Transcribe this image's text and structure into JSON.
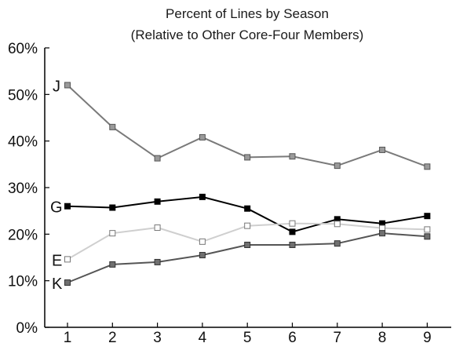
{
  "chart_data": {
    "type": "line",
    "title": "Percent of Lines by Season",
    "subtitle": "(Relative to Other Core-Four Members)",
    "xlabel": "",
    "ylabel": "",
    "x": [
      1,
      2,
      3,
      4,
      5,
      6,
      7,
      8,
      9
    ],
    "x_tick_labels": [
      "1",
      "2",
      "3",
      "4",
      "5",
      "6",
      "7",
      "8",
      "9"
    ],
    "ylim": [
      0,
      60
    ],
    "y_ticks": [
      0,
      10,
      20,
      30,
      40,
      50,
      60
    ],
    "y_tick_labels": [
      "0%",
      "10%",
      "20%",
      "30%",
      "40%",
      "50%",
      "60%"
    ],
    "grid": false,
    "legend": "none",
    "series": [
      {
        "name": "J",
        "values": [
          52.0,
          43.0,
          36.3,
          40.8,
          36.5,
          36.7,
          34.7,
          38.1,
          34.5
        ],
        "line_color": "#7a7a7a",
        "marker_fill": "#9a9a9a",
        "marker_stroke": "#555555"
      },
      {
        "name": "G",
        "values": [
          26.0,
          25.7,
          27.0,
          28.0,
          25.5,
          20.5,
          23.2,
          22.3,
          23.9
        ],
        "line_color": "#000000",
        "marker_fill": "#000000",
        "marker_stroke": "#000000"
      },
      {
        "name": "E",
        "values": [
          14.6,
          20.2,
          21.4,
          18.4,
          21.8,
          22.3,
          22.2,
          21.3,
          21.0
        ],
        "line_color": "#cfcfcf",
        "marker_fill": "#ffffff",
        "marker_stroke": "#777777"
      },
      {
        "name": "K",
        "values": [
          9.6,
          13.5,
          14.0,
          15.5,
          17.7,
          17.7,
          18.0,
          20.2,
          19.5
        ],
        "line_color": "#555555",
        "marker_fill": "#707070",
        "marker_stroke": "#333333"
      }
    ]
  }
}
